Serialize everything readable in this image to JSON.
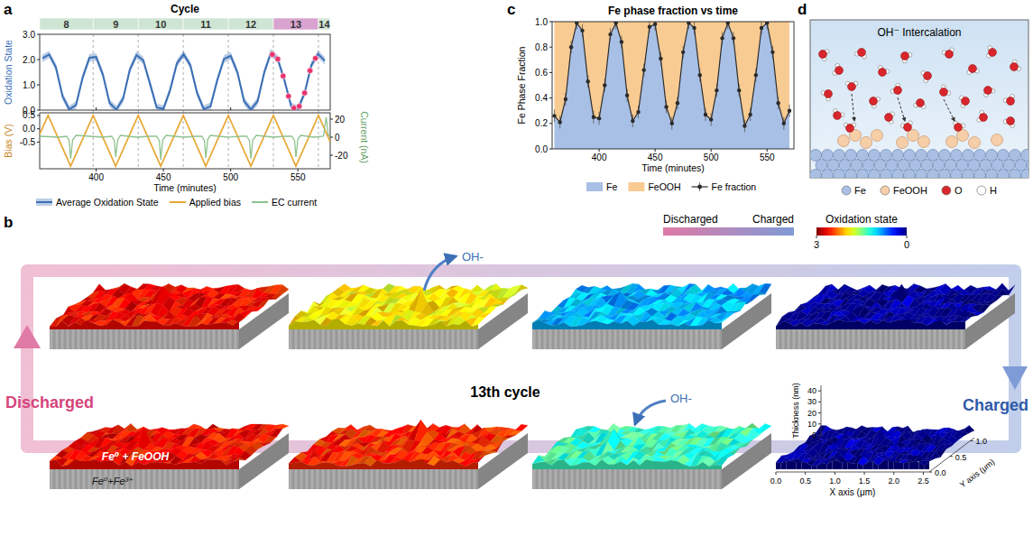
{
  "chart_data": [
    {
      "type": "line",
      "panel_label": "a",
      "cycles": {
        "title": "Cycle",
        "labels": [
          8,
          9,
          10,
          11,
          12,
          13,
          14
        ],
        "bounds": [
          358,
          397.75,
          431.25,
          464.75,
          498.25,
          531.75,
          565.25,
          574
        ],
        "colors": [
          "#cfe5d3",
          "#cfe5d3",
          "#cfe5d3",
          "#cfe5d3",
          "#cfe5d3",
          "#d8a3cf",
          "#cfe5d3"
        ]
      },
      "ylabel": "Oxidation State",
      "xlim": [
        358,
        574
      ],
      "xticks": [
        400,
        450,
        500,
        550
      ],
      "ylim": [
        0,
        3
      ],
      "yticks": [
        {
          "value": 0,
          "label": "0.0"
        },
        {
          "value": 1,
          "label": "1.0"
        },
        {
          "value": 2,
          "label": "2.0"
        },
        {
          "value": 3,
          "label": "3.0"
        }
      ],
      "tick_labels": "y",
      "legend": "bottom",
      "series": [
        {
          "name": "Average Oxidation State",
          "color": "#3b6fb6",
          "x": [
            360,
            365,
            370,
            375,
            380,
            385,
            390,
            395,
            400,
            405,
            410,
            415,
            420,
            425,
            430,
            435,
            440,
            445,
            450,
            455,
            460,
            465,
            470,
            475,
            480,
            485,
            490,
            495,
            500,
            505,
            510,
            515,
            520,
            525,
            530,
            535,
            540,
            545,
            550,
            555,
            560,
            565,
            570
          ],
          "values": [
            2.05,
            2.2,
            1.7,
            0.55,
            0.03,
            0.2,
            1.3,
            2.07,
            2.1,
            1.4,
            0.28,
            0.02,
            0.45,
            1.6,
            2.18,
            1.97,
            1.05,
            0.1,
            0.05,
            0.8,
            1.85,
            2.21,
            1.78,
            0.68,
            0.04,
            0.15,
            1.18,
            2.02,
            2.15,
            1.5,
            0.35,
            0.02,
            0.35,
            1.5,
            2.28,
            2.02,
            1.18,
            0.15,
            0.04,
            0.68,
            1.78,
            2.22,
            1.95
          ],
          "error": [
            0.15,
            0.15,
            0.15,
            0.15,
            0.15,
            0.15,
            0.15,
            0.15,
            0.15,
            0.15,
            0.15,
            0.15,
            0.15,
            0.15,
            0.15,
            0.15,
            0.15,
            0.15,
            0.15,
            0.15,
            0.15,
            0.15,
            0.15,
            0.15,
            0.15,
            0.15,
            0.15,
            0.15,
            0.15,
            0.15,
            0.15,
            0.15,
            0.15,
            0.15,
            0.15,
            0.15,
            0.15,
            0.15,
            0.15,
            0.15,
            0.15,
            0.15,
            0.15
          ]
        },
        {
          "type": "scatter",
          "color": "#e8336d",
          "marker": "circle",
          "x": [
            531,
            535,
            539,
            543,
            547,
            551,
            555,
            559,
            563
          ],
          "values": [
            2.2,
            2.02,
            1.35,
            0.55,
            0.08,
            0.15,
            0.68,
            1.56,
            2.05
          ]
        }
      ]
    },
    {
      "type": "line",
      "xlabel": "Time (minutes)",
      "xlim": [
        358,
        574
      ],
      "xticks": [
        400,
        450,
        500,
        550
      ],
      "ylabel": "Bias (V)",
      "ylim": [
        -1.5,
        0.6
      ],
      "yticks": [
        -0.5,
        {
          "value": 0,
          "label": "0.0"
        },
        0.5
      ],
      "y2label": "Current (nA)",
      "y2lim": [
        -35,
        27
      ],
      "y2ticks": [
        -20,
        0,
        20
      ],
      "legend": "bottom",
      "series": [
        {
          "name": "Applied bias",
          "color": "#e8a735",
          "x": [
            358,
            364.25,
            381,
            397.75,
            414.5,
            431.25,
            448,
            464.75,
            481.5,
            498.25,
            515,
            531.75,
            548.5,
            565.25,
            574
          ],
          "values": [
            -0.21,
            0.5,
            -1.4,
            0.5,
            -1.4,
            0.5,
            -1.4,
            0.5,
            -1.4,
            0.5,
            -1.4,
            0.5,
            -1.4,
            0.5,
            -0.49
          ]
        },
        {
          "name": "EC current",
          "color": "#8dc28d",
          "axis": "y2",
          "x": [
            358,
            372,
            378,
            380,
            381,
            382.5,
            385,
            395,
            405,
            411.5,
            413.5,
            414.5,
            416,
            418,
            430,
            440,
            445,
            447,
            448,
            449.5,
            452,
            465,
            475,
            478.5,
            480.5,
            481.5,
            483,
            485,
            498,
            508,
            512,
            514,
            515,
            516.5,
            519,
            532,
            540,
            545.5,
            547.5,
            548.5,
            550,
            552,
            562,
            569,
            571,
            572.5,
            574
          ],
          "values": [
            1,
            0,
            1,
            -4,
            -24,
            -3,
            2,
            1,
            0,
            1,
            -4,
            -22,
            -3,
            2,
            0,
            1,
            1,
            -4,
            -25,
            -3,
            2,
            0,
            1,
            1,
            -4,
            -23,
            -2,
            2,
            0,
            1,
            1,
            -4,
            -24,
            -3,
            2,
            0,
            1,
            1,
            -4,
            -22,
            -2,
            2,
            0,
            1,
            22,
            3,
            0
          ]
        }
      ]
    },
    {
      "type": "line",
      "panel_label": "c",
      "title": "Fe phase fraction vs time",
      "xlabel": "Time (minutes)",
      "ylabel": "Fe Phase Fraction",
      "xlim": [
        358,
        574
      ],
      "xticks": [
        400,
        450,
        500,
        550
      ],
      "ylim": [
        0,
        1
      ],
      "yticks": [
        {
          "value": 0,
          "label": "0.0"
        },
        0.2,
        0.4,
        0.6,
        0.8,
        {
          "value": 1,
          "label": "1.0"
        }
      ],
      "legend": "bottom",
      "fills": [
        {
          "name": "Fe",
          "color": "#a8c0e6"
        },
        {
          "name": "FeOOH",
          "color": "#f8cb92"
        }
      ],
      "series": [
        {
          "name": "Fe fraction",
          "color": "#2b2b2b",
          "marker": "circle",
          "x": [
            360,
            365,
            370,
            375,
            380,
            385,
            390,
            395,
            400,
            405,
            410,
            415,
            420,
            425,
            430,
            435,
            440,
            445,
            450,
            455,
            460,
            465,
            470,
            475,
            480,
            485,
            490,
            495,
            500,
            505,
            510,
            515,
            520,
            525,
            530,
            535,
            540,
            545,
            550,
            555,
            560,
            565,
            570
          ],
          "values": [
            0.26,
            0.21,
            0.39,
            0.8,
            0.99,
            0.93,
            0.53,
            0.25,
            0.24,
            0.5,
            0.9,
            0.99,
            0.84,
            0.42,
            0.22,
            0.29,
            0.62,
            0.96,
            0.98,
            0.71,
            0.33,
            0.2,
            0.36,
            0.76,
            0.99,
            0.95,
            0.58,
            0.27,
            0.23,
            0.46,
            0.87,
            0.99,
            0.87,
            0.46,
            0.18,
            0.27,
            0.58,
            0.95,
            0.99,
            0.76,
            0.36,
            0.2,
            0.3
          ],
          "error": [
            0.05,
            0.05,
            0.05,
            0.05,
            0.05,
            0.05,
            0.05,
            0.05,
            0.05,
            0.05,
            0.05,
            0.05,
            0.05,
            0.05,
            0.05,
            0.05,
            0.05,
            0.05,
            0.05,
            0.05,
            0.05,
            0.05,
            0.05,
            0.05,
            0.05,
            0.05,
            0.05,
            0.05,
            0.05,
            0.05,
            0.05,
            0.05,
            0.05,
            0.05,
            0.05,
            0.05,
            0.05,
            0.05,
            0.05,
            0.05,
            0.05,
            0.05,
            0.05
          ]
        }
      ]
    }
  ],
  "panel_b": {
    "label": "b",
    "state_bar": {
      "start": "Discharged",
      "end": "Charged"
    },
    "colorbar": {
      "title": "Oxidation state",
      "range": [
        0,
        3
      ],
      "ticks": [
        3,
        0
      ]
    },
    "loop": {
      "start": "Discharged",
      "end": "Charged",
      "center": "13th cycle"
    },
    "annotations": [
      "OH-",
      "OH-"
    ],
    "film_label": "Fe⁰ + FeOOH",
    "substrate_label": "Fe⁰+Fe³⁺",
    "surfaces": [
      {
        "oxidation_state": 2.6
      },
      {
        "oxidation_state": 1.9
      },
      {
        "oxidation_state": 0.9
      },
      {
        "oxidation_state": 0.05
      },
      {
        "oxidation_state": 2.6
      },
      {
        "oxidation_state": 2.5
      },
      {
        "oxidation_state": 1.3
      },
      {
        "oxidation_state": 0.05
      }
    ],
    "axes": {
      "x_title": "X axis (μm)",
      "xlim": [
        0,
        2.6
      ],
      "xticks": [
        {
          "value": 0,
          "label": "0.0"
        },
        0.5,
        {
          "value": 1,
          "label": "1.0"
        },
        1.5,
        {
          "value": 2,
          "label": "2.0"
        },
        2.5
      ],
      "y_title": "Y axis (μm)",
      "ylim": [
        0,
        1.1
      ],
      "yticks": [
        {
          "value": 0,
          "label": "0.0"
        },
        0.5,
        {
          "value": 1,
          "label": "1.0"
        }
      ],
      "z_title": "Thickness (nm)",
      "zlim": [
        0,
        45
      ],
      "zticks": [
        0,
        10,
        20,
        30,
        40
      ]
    }
  },
  "panel_d": {
    "label": "d",
    "title": "OH⁻ Intercalation",
    "legend": [
      {
        "name": "Fe",
        "color": "#a9c0e4"
      },
      {
        "name": "FeOOH",
        "color": "#f6cfa8"
      },
      {
        "name": "O",
        "color": "#d8262c"
      },
      {
        "name": "H",
        "color": "#ffffff"
      }
    ]
  }
}
